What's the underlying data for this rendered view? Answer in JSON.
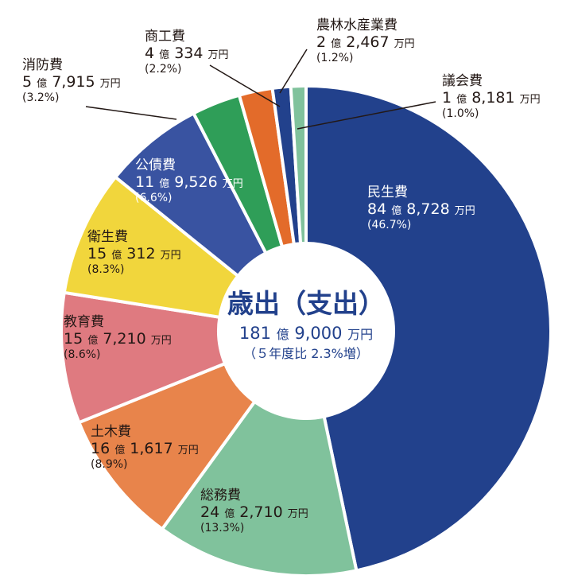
{
  "chart_data": {
    "type": "pie",
    "title": "歳出（支出）",
    "total": {
      "oku": "181",
      "man": "9,000",
      "note": "（５年度比 2.3%増）"
    },
    "units": {
      "oku": "億",
      "man": "万円"
    },
    "slices": [
      {
        "name": "民生費",
        "oku": "84",
        "man": "8,728",
        "pct": 46.7,
        "pct_label": "(46.7%)",
        "color": "#22418c",
        "text": "light"
      },
      {
        "name": "総務費",
        "oku": "24",
        "man": "2,710",
        "pct": 13.3,
        "pct_label": "(13.3%)",
        "color": "#80c29c",
        "text": "dark"
      },
      {
        "name": "土木費",
        "oku": "16",
        "man": "1,617",
        "pct": 8.9,
        "pct_label": "(8.9%)",
        "color": "#e8844b",
        "text": "dark"
      },
      {
        "name": "教育費",
        "oku": "15",
        "man": "7,210",
        "pct": 8.6,
        "pct_label": "(8.6%)",
        "color": "#df7a80",
        "text": "dark"
      },
      {
        "name": "衛生費",
        "oku": "15",
        "man": "312",
        "pct": 8.3,
        "pct_label": "(8.3%)",
        "color": "#f1d63c",
        "text": "dark"
      },
      {
        "name": "公債費",
        "oku": "11",
        "man": "9,526",
        "pct": 6.6,
        "pct_label": "(6.6%)",
        "color": "#3953a1",
        "text": "light"
      },
      {
        "name": "消防費",
        "oku": "5",
        "man": "7,915",
        "pct": 3.2,
        "pct_label": "(3.2%)",
        "color": "#2f9e58",
        "text": "dark"
      },
      {
        "name": "商工費",
        "oku": "4",
        "man": "334",
        "pct": 2.2,
        "pct_label": "(2.2%)",
        "color": "#e36b2a",
        "text": "dark"
      },
      {
        "name": "農林水産業費",
        "oku": "2",
        "man": "2,467",
        "pct": 1.2,
        "pct_label": "(1.2%)",
        "color": "#22418c",
        "text": "dark"
      },
      {
        "name": "議会費",
        "oku": "1",
        "man": "8,181",
        "pct": 1.0,
        "pct_label": "(1.0%)",
        "color": "#80c29c",
        "text": "dark"
      }
    ]
  }
}
